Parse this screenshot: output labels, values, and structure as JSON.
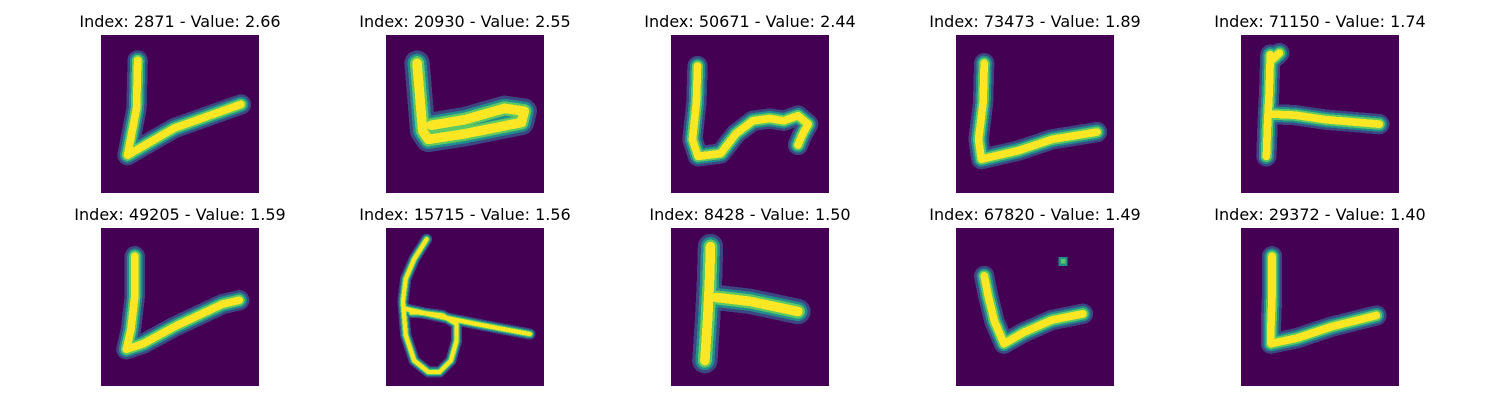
{
  "colors": {
    "background": "#440154",
    "stroke_core": "#fde725",
    "stroke_mid": "#5ec962",
    "stroke_edge": "#21918c",
    "stroke_halo": "#3b528b"
  },
  "panels": [
    {
      "title": "Index: 2871 - Value: 2.66"
    },
    {
      "title": "Index: 20930 - Value: 2.55"
    },
    {
      "title": "Index: 50671 - Value: 2.44"
    },
    {
      "title": "Index: 73473 - Value: 1.89"
    },
    {
      "title": "Index: 71150 - Value: 1.74"
    },
    {
      "title": "Index: 49205 - Value: 1.59"
    },
    {
      "title": "Index: 15715 - Value: 1.56"
    },
    {
      "title": "Index: 8428 - Value: 1.50"
    },
    {
      "title": "Index: 67820 - Value: 1.49"
    },
    {
      "title": "Index: 29372 - Value: 1.40"
    }
  ]
}
